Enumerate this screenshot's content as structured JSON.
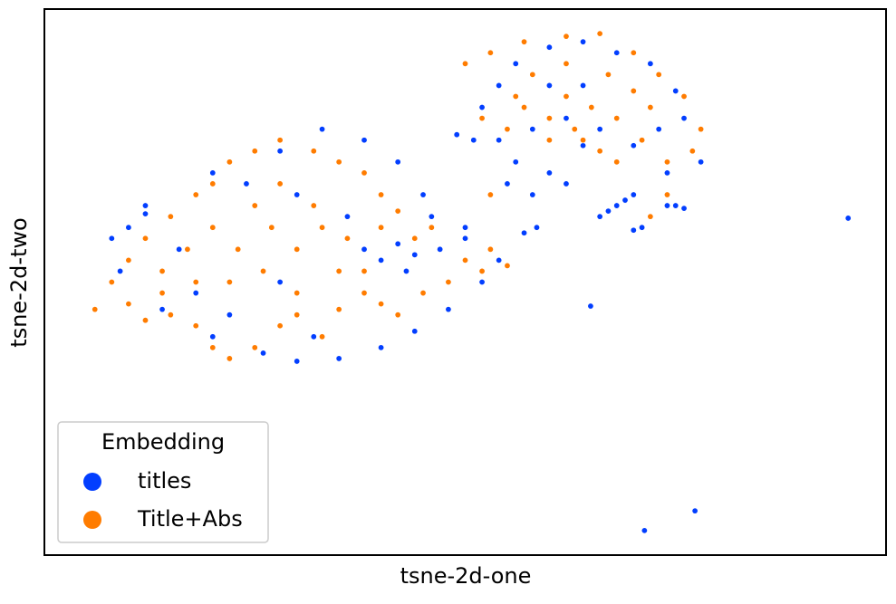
{
  "chart_data": {
    "type": "scatter",
    "x_label": "tsne-2d-one",
    "y_label": "tsne-2d-two",
    "legend_title": "Embedding",
    "legend": "lower left",
    "xlim": [
      0,
      100
    ],
    "ylim": [
      0,
      100
    ],
    "series": [
      {
        "name": "titles",
        "color": "#023eff",
        "x": [
          10,
          8,
          12,
          9,
          14,
          20,
          26,
          30,
          35,
          40,
          44,
          48,
          52,
          54,
          50,
          46,
          42,
          40,
          38,
          44,
          47,
          43,
          36,
          30,
          24,
          20,
          28,
          33,
          38,
          42,
          18,
          22,
          32,
          28,
          16,
          12,
          45,
          50,
          52,
          54,
          56,
          60,
          64,
          68,
          72,
          75,
          76,
          78,
          74,
          70,
          68,
          67,
          69,
          66,
          71,
          70,
          75,
          76,
          74,
          60,
          56,
          54,
          58,
          62,
          64,
          66,
          62,
          58,
          55,
          70,
          73,
          64,
          60,
          51,
          49,
          95.5,
          64.9,
          77.3,
          71.3,
          57,
          58.5
        ],
        "values": [
          60,
          58,
          64,
          52,
          45,
          40,
          37,
          35.5,
          36,
          38,
          41,
          45,
          50,
          54,
          58,
          62,
          57,
          54,
          56,
          55,
          56,
          52,
          62,
          66,
          68,
          70,
          74,
          78,
          76,
          72,
          48,
          44,
          40,
          50,
          56,
          62.5,
          66,
          60,
          82,
          86,
          90,
          93,
          94,
          92,
          90,
          85,
          80,
          72,
          70,
          66,
          64,
          63,
          65,
          62,
          60,
          59.5,
          64,
          63.5,
          64,
          70,
          72,
          76,
          78,
          80,
          75,
          78,
          68,
          66,
          68,
          75,
          78,
          86,
          86,
          76,
          77,
          61.7,
          45.6,
          8.1,
          4.5,
          59,
          60
        ]
      },
      {
        "name": "Title+Abs",
        "color": "#ff7c00",
        "x": [
          6,
          8,
          10,
          12,
          15,
          18,
          20,
          22,
          25,
          28,
          30,
          33,
          35,
          38,
          40,
          42,
          45,
          48,
          52,
          55,
          53,
          50,
          46,
          42,
          40,
          38,
          35,
          32,
          28,
          25,
          22,
          20,
          18,
          15,
          12,
          10,
          14,
          17,
          20,
          23,
          26,
          30,
          33,
          36,
          38,
          25,
          28,
          32,
          22,
          18,
          30,
          35,
          27,
          14,
          40,
          44,
          50,
          53,
          57,
          62,
          66,
          70,
          73,
          76,
          78,
          77,
          74,
          71,
          68,
          65,
          62,
          60,
          63,
          66,
          64,
          68,
          60,
          57,
          55,
          52,
          72,
          70,
          67,
          62,
          58,
          56,
          74,
          72,
          53
        ],
        "values": [
          45,
          50,
          46,
          43,
          44,
          42,
          38,
          36,
          38,
          42,
          44,
          40,
          45,
          48,
          46,
          44,
          48,
          50,
          52,
          53,
          56,
          54,
          60,
          63,
          66,
          70,
          72,
          74,
          76,
          74,
          72,
          68,
          66,
          62,
          58,
          54,
          52,
          56,
          60,
          56,
          52,
          56,
          60,
          58,
          52,
          64,
          68,
          64,
          50,
          50,
          48,
          52,
          60,
          48,
          60,
          58,
          90,
          92,
          94,
          95,
          95.5,
          92,
          88,
          84,
          78,
          74,
          72,
          76,
          80,
          82,
          84,
          80,
          78,
          74,
          76,
          72,
          76,
          82,
          78,
          80,
          82,
          85,
          88,
          90,
          88,
          84,
          66,
          62,
          66
        ]
      }
    ]
  }
}
